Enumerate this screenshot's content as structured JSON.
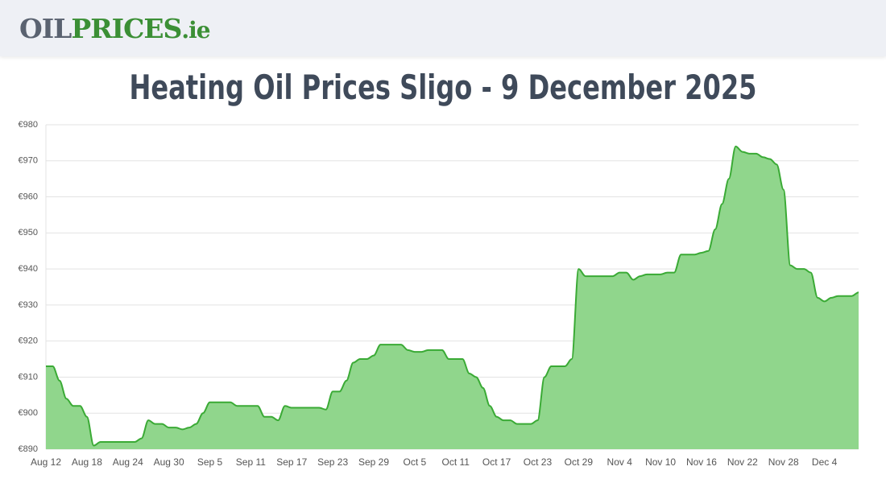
{
  "header": {
    "logo_parts": [
      "OIL",
      "PRICES",
      ".ie"
    ]
  },
  "chart_data": {
    "type": "area",
    "title": "Heating Oil Prices Sligo - 9 December 2025",
    "color": "#3aaa35",
    "fill": "#90d68c",
    "grid": true,
    "categories": [
      "Aug 12",
      null,
      null,
      null,
      null,
      null,
      "Aug 18",
      null,
      null,
      null,
      null,
      null,
      "Aug 24",
      null,
      null,
      null,
      null,
      null,
      "Aug 30",
      null,
      null,
      null,
      null,
      null,
      "Sep 5",
      null,
      null,
      null,
      null,
      null,
      "Sep 11",
      null,
      null,
      null,
      null,
      null,
      "Sep 17",
      null,
      null,
      null,
      null,
      null,
      "Sep 23",
      null,
      null,
      null,
      null,
      null,
      "Sep 29",
      null,
      null,
      null,
      null,
      null,
      "Oct 5",
      null,
      null,
      null,
      null,
      null,
      "Oct 11",
      null,
      null,
      null,
      null,
      null,
      "Oct 17",
      null,
      null,
      null,
      null,
      null,
      "Oct 23",
      null,
      null,
      null,
      null,
      null,
      "Oct 29",
      null,
      null,
      null,
      null,
      null,
      "Nov 4",
      null,
      null,
      null,
      null,
      null,
      "Nov 10",
      null,
      null,
      null,
      null,
      null,
      "Nov 16",
      null,
      null,
      null,
      null,
      null,
      "Nov 22",
      null,
      null,
      null,
      null,
      null,
      "Nov 28",
      null,
      null,
      null,
      null,
      null,
      "Dec 4",
      null,
      null,
      null,
      null,
      null
    ],
    "values": [
      913,
      913,
      909,
      904,
      902,
      902,
      899,
      891,
      892,
      892,
      892,
      892,
      892,
      892,
      893,
      898,
      897,
      897,
      896,
      896,
      895.5,
      896,
      897,
      900,
      903,
      903,
      903,
      903,
      902,
      902,
      902,
      902,
      899,
      899,
      898,
      902,
      901.5,
      901.5,
      901.5,
      901.5,
      901.5,
      901,
      906,
      906,
      909,
      914,
      915,
      915,
      916,
      919,
      919,
      919,
      919,
      917.5,
      917,
      917,
      917.5,
      917.5,
      917.5,
      915,
      915,
      915,
      911,
      910,
      907,
      902,
      899,
      898,
      898,
      897,
      897,
      897,
      898,
      910,
      913,
      913,
      913,
      915,
      940,
      938,
      938,
      938,
      938,
      938,
      939,
      939,
      937,
      938,
      938.5,
      938.5,
      938.5,
      939,
      939,
      944,
      944,
      944,
      944.5,
      945,
      951,
      958,
      965,
      974,
      972.5,
      972,
      972,
      971,
      970.5,
      969,
      962,
      941,
      940,
      940,
      939,
      932,
      931,
      932,
      932.5,
      932.5,
      932.5,
      933.5
    ],
    "ylim": [
      890,
      980
    ],
    "yticks": [
      {
        "value": 890,
        "label": "€890"
      },
      {
        "value": 900,
        "label": "€900"
      },
      {
        "value": 910,
        "label": "€910"
      },
      {
        "value": 920,
        "label": "€920"
      },
      {
        "value": 930,
        "label": "€930"
      },
      {
        "value": 940,
        "label": "€940"
      },
      {
        "value": 950,
        "label": "€950"
      },
      {
        "value": 960,
        "label": "€960"
      },
      {
        "value": 970,
        "label": "€970"
      },
      {
        "value": 980,
        "label": "€980"
      }
    ]
  }
}
